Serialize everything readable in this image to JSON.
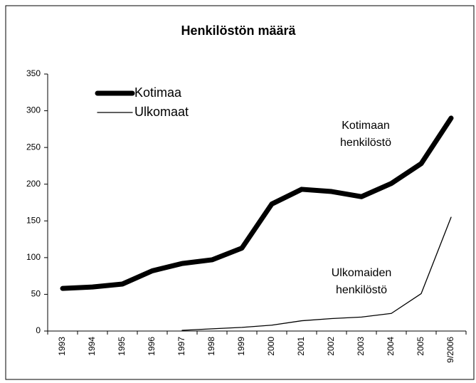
{
  "chart_data": {
    "type": "line",
    "title": "Henkilöstön määrä",
    "categories": [
      "1993",
      "1994",
      "1995",
      "1996",
      "1997",
      "1998",
      "1999",
      "2000",
      "2001",
      "2002",
      "2003",
      "2004",
      "2005",
      "9/2006"
    ],
    "series": [
      {
        "name": "Kotimaa",
        "color": "#000000",
        "values": [
          58,
          60,
          64,
          82,
          92,
          97,
          113,
          173,
          193,
          190,
          183,
          201,
          228,
          290
        ]
      },
      {
        "name": "Ulkomaat",
        "color": "#000000",
        "values": [
          null,
          null,
          null,
          null,
          1,
          3,
          5,
          8,
          14,
          17,
          19,
          24,
          51,
          155
        ]
      }
    ],
    "annotations": [
      {
        "lines": [
          "Kotimaan",
          "henkilöstö"
        ]
      },
      {
        "lines": [
          "Ulkomaiden",
          "henkilöstö"
        ]
      }
    ],
    "ylim": [
      0,
      350
    ],
    "yticks": [
      0,
      50,
      100,
      150,
      200,
      250,
      300,
      350
    ],
    "legend": "upper left"
  }
}
